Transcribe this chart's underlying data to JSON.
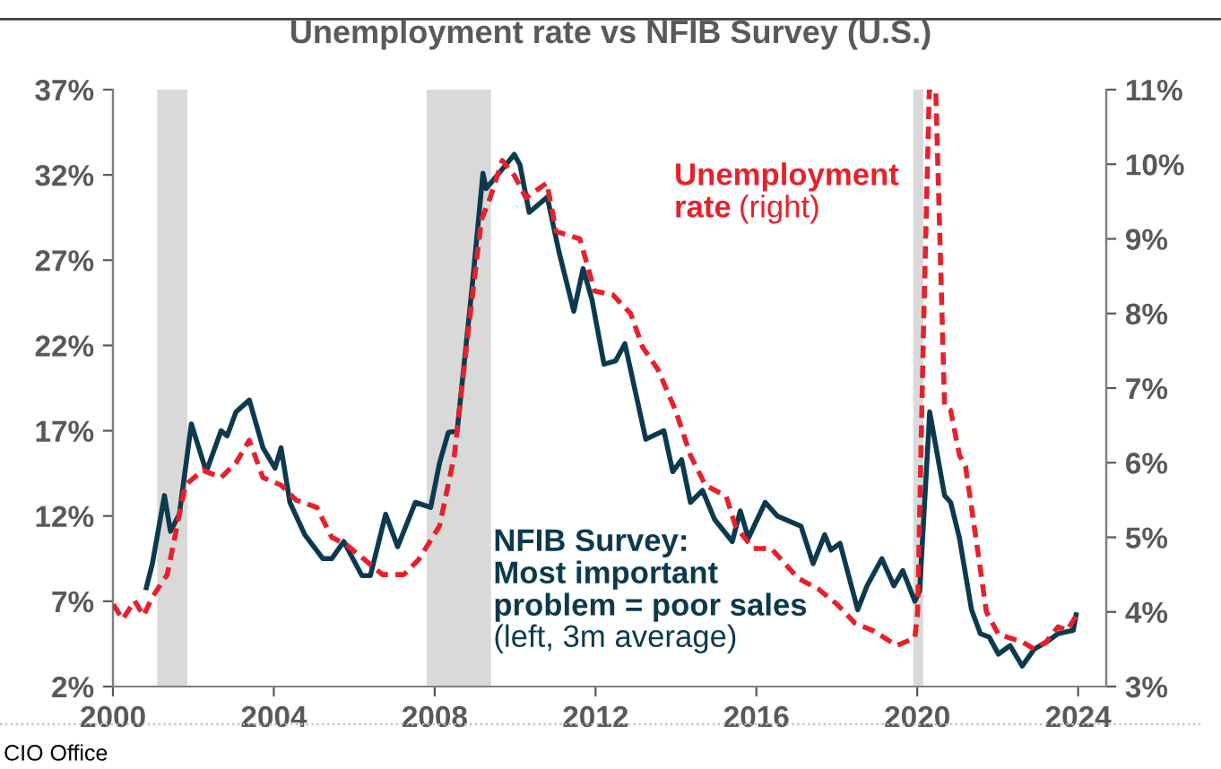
{
  "chart_data": {
    "type": "line",
    "title": "Unemployment rate vs NFIB Survey (U.S.)",
    "xlim": [
      2000,
      2024.7
    ],
    "xticks": [
      2000,
      2004,
      2008,
      2012,
      2016,
      2020,
      2024
    ],
    "ylim": [
      2,
      37
    ],
    "yticks": [
      {
        "value": 2,
        "label": "2%"
      },
      {
        "value": 7,
        "label": "7%"
      },
      {
        "value": 12,
        "label": "12%"
      },
      {
        "value": 17,
        "label": "17%"
      },
      {
        "value": 22,
        "label": "22%"
      },
      {
        "value": 27,
        "label": "27%"
      },
      {
        "value": 32,
        "label": "32%"
      },
      {
        "value": 37,
        "label": "37%"
      }
    ],
    "y2lim": [
      3,
      11
    ],
    "y2ticks": [
      {
        "value": 3,
        "label": "3%"
      },
      {
        "value": 4,
        "label": "4%"
      },
      {
        "value": 5,
        "label": "5%"
      },
      {
        "value": 6,
        "label": "6%"
      },
      {
        "value": 7,
        "label": "7%"
      },
      {
        "value": 8,
        "label": "8%"
      },
      {
        "value": 9,
        "label": "9%"
      },
      {
        "value": 10,
        "label": "10%"
      },
      {
        "value": 11,
        "label": "11%"
      }
    ],
    "grid": false,
    "legend": false,
    "bands": [
      {
        "axis": "x",
        "from": 2001.1,
        "to": 2001.85,
        "color": "#d9d9d9"
      },
      {
        "axis": "x",
        "from": 2007.8,
        "to": 2009.4,
        "color": "#d9d9d9"
      },
      {
        "axis": "x",
        "from": 2019.9,
        "to": 2020.15,
        "color": "#d9d9d9"
      }
    ],
    "series": [
      {
        "name": "NFIB Survey:\nMost important\nproblem = poor sales",
        "color": "#0b3a4f",
        "line_style": "solid",
        "x": [
          2000.83,
          2000.98,
          2001.28,
          2001.43,
          2001.65,
          2001.95,
          2002.32,
          2002.69,
          2002.84,
          2003.06,
          2003.39,
          2003.73,
          2004.03,
          2004.18,
          2004.4,
          2004.77,
          2005.22,
          2005.44,
          2005.74,
          2006.19,
          2006.4,
          2006.78,
          2007.08,
          2007.52,
          2007.9,
          2008.12,
          2008.34,
          2008.56,
          2008.93,
          2009.2,
          2009.28,
          2009.6,
          2009.98,
          2010.12,
          2010.35,
          2010.8,
          2011.09,
          2011.46,
          2011.69,
          2011.91,
          2012.21,
          2012.5,
          2012.73,
          2013.25,
          2013.7,
          2013.92,
          2014.14,
          2014.36,
          2014.66,
          2014.96,
          2015.4,
          2015.6,
          2015.8,
          2016.22,
          2016.52,
          2017.11,
          2017.41,
          2017.7,
          2017.85,
          2018.08,
          2018.52,
          2018.75,
          2019.12,
          2019.42,
          2019.64,
          2019.94,
          2020.06,
          2020.31,
          2020.68,
          2020.83,
          2021.05,
          2021.35,
          2021.57,
          2021.79,
          2022.02,
          2022.31,
          2022.61,
          2022.91,
          2023.21,
          2023.5,
          2023.88,
          2023.95
        ],
        "values": [
          7.8,
          9.2,
          13.2,
          11.1,
          12.1,
          17.4,
          14.6,
          17.0,
          16.7,
          18.1,
          18.8,
          16.0,
          14.8,
          16.0,
          12.8,
          10.9,
          9.5,
          9.5,
          10.5,
          8.5,
          8.5,
          12.1,
          10.2,
          12.8,
          12.5,
          15.1,
          16.9,
          17.0,
          25.4,
          32.1,
          31.2,
          32.1,
          33.2,
          32.6,
          29.8,
          30.7,
          27.5,
          24.0,
          26.5,
          24.7,
          20.9,
          21.1,
          22.1,
          16.5,
          17.0,
          14.6,
          15.3,
          12.8,
          13.5,
          11.8,
          10.5,
          12.3,
          10.7,
          12.8,
          12.0,
          11.4,
          9.2,
          10.9,
          10.0,
          10.4,
          6.5,
          7.9,
          9.5,
          7.9,
          8.8,
          7.0,
          7.6,
          18.1,
          13.2,
          12.8,
          10.7,
          6.5,
          5.1,
          4.9,
          3.9,
          4.4,
          3.2,
          4.2,
          4.6,
          5.1,
          5.3,
          6.2
        ]
      },
      {
        "name": "Unemployment\nrate",
        "color": "#e8202a",
        "axis": "y2",
        "line_style": "dashed",
        "x": [
          2000.01,
          2000.24,
          2000.54,
          2000.76,
          2000.98,
          2001.35,
          2001.8,
          2002.24,
          2002.69,
          2003.06,
          2003.39,
          2003.73,
          2004.18,
          2004.55,
          2005.07,
          2005.44,
          2005.81,
          2006.26,
          2006.7,
          2007.23,
          2007.6,
          2008.12,
          2008.49,
          2008.79,
          2009.16,
          2009.38,
          2009.68,
          2009.98,
          2010.27,
          2010.79,
          2011.02,
          2011.61,
          2011.98,
          2012.43,
          2012.87,
          2013.17,
          2013.55,
          2013.99,
          2014.36,
          2014.73,
          2015.25,
          2015.48,
          2015.92,
          2016.37,
          2017.04,
          2017.56,
          2018.01,
          2018.45,
          2018.9,
          2019.49,
          2019.94,
          2020.01,
          2020.16,
          2020.3,
          2020.46,
          2020.68,
          2020.83,
          2021.05,
          2021.2,
          2021.35,
          2021.72,
          2022.02,
          2022.61,
          2022.91,
          2023.21,
          2023.5,
          2023.73,
          2023.95
        ],
        "values": [
          4.1,
          3.9,
          4.15,
          3.95,
          4.2,
          4.5,
          5.7,
          5.9,
          5.8,
          6.0,
          6.3,
          5.8,
          5.7,
          5.5,
          5.4,
          5.0,
          4.9,
          4.7,
          4.5,
          4.5,
          4.7,
          5.15,
          6.1,
          7.55,
          9.25,
          9.55,
          10.05,
          9.85,
          9.55,
          9.75,
          9.1,
          9.0,
          8.3,
          8.25,
          8.0,
          7.55,
          7.25,
          6.7,
          6.1,
          5.7,
          5.55,
          5.15,
          4.85,
          4.85,
          4.45,
          4.3,
          4.1,
          3.85,
          3.75,
          3.55,
          3.65,
          4.0,
          7.9,
          11.0,
          11.0,
          6.75,
          6.7,
          6.1,
          5.95,
          5.4,
          4.0,
          3.7,
          3.6,
          3.5,
          3.6,
          3.8,
          3.75,
          3.95
        ]
      }
    ],
    "annotations": [
      "(left, 3m average)",
      "(right)",
      "CIO Office"
    ]
  }
}
